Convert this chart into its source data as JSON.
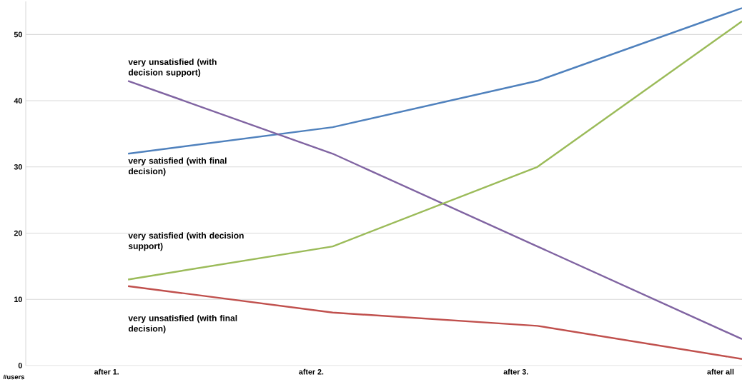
{
  "chart_data": {
    "type": "line",
    "ylabel": "#users",
    "categories": [
      "after 1.",
      "after 2.",
      "after 3.",
      "after all"
    ],
    "series": [
      {
        "name": "very satisfied (with final decision)",
        "color": "#4f81bd",
        "values": [
          32,
          36,
          43,
          54
        ]
      },
      {
        "name": "very unsatisfied (with decision support)",
        "color": "#8064a2",
        "values": [
          43,
          32,
          18,
          4
        ]
      },
      {
        "name": "very satisfied (with decision support)",
        "color": "#9bbb59",
        "values": [
          13,
          18,
          30,
          52
        ]
      },
      {
        "name": "very unsatisfied (with final decision)",
        "color": "#c0504d",
        "values": [
          12,
          8,
          6,
          1
        ]
      }
    ],
    "ylim": [
      0,
      55
    ],
    "yticks": [
      0,
      10,
      20,
      30,
      40,
      50
    ],
    "grid": "y",
    "marker": "none",
    "line_style": "solid"
  }
}
